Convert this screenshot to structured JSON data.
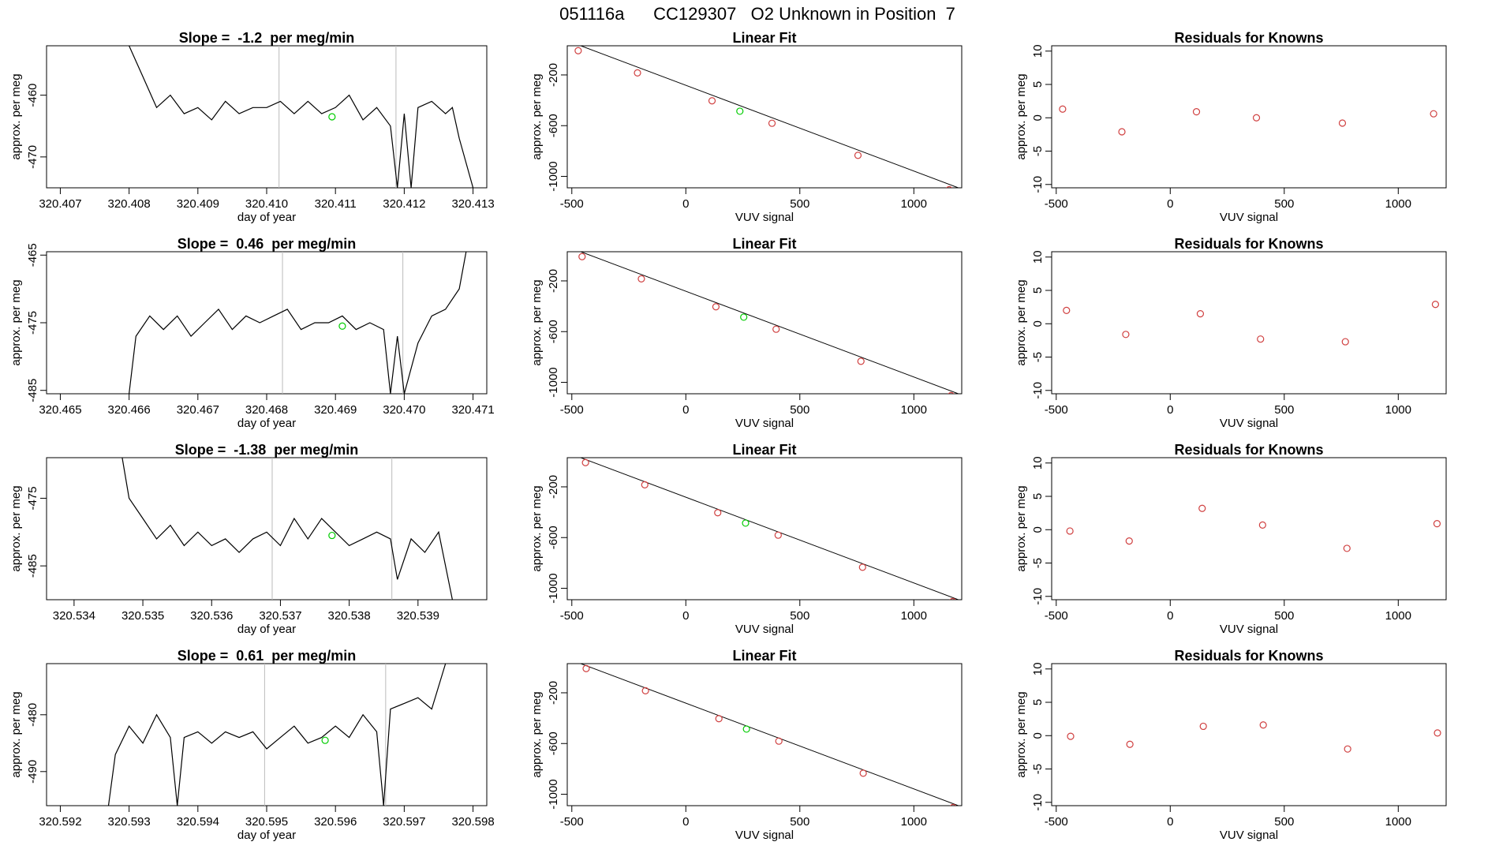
{
  "page_title": "051116a      CC129307   O2 Unknown in Position  7",
  "chart_data": [
    {
      "type": "line",
      "title": "Slope =  -1.2  per meg/min",
      "xlabel": "day of year",
      "ylabel": "approx. per meg",
      "xlim": [
        320.4068,
        320.4132
      ],
      "ylim": [
        -475,
        -452
      ],
      "xticks": [
        "320.407",
        "320.408",
        "320.409",
        "320.410",
        "320.411",
        "320.412",
        "320.413"
      ],
      "yticks": [
        "-460",
        "-470"
      ],
      "ytick_values": [
        -460,
        -470
      ],
      "vlines": [
        320.41018,
        320.41188
      ],
      "marker": {
        "x": 320.41095,
        "y": -463.5,
        "color": "#00cc00"
      },
      "line_color": "#000000",
      "series": [
        {
          "name": "trace",
          "x": [
            320.408,
            320.4082,
            320.4084,
            320.4086,
            320.4088,
            320.409,
            320.4092,
            320.4094,
            320.4096,
            320.4098,
            320.41,
            320.4102,
            320.4104,
            320.4106,
            320.4108,
            320.411,
            320.4112,
            320.4114,
            320.4116,
            320.4118,
            320.4119,
            320.412,
            320.4121,
            320.4122,
            320.4124,
            320.4126,
            320.4127,
            320.4128,
            320.413
          ],
          "y": [
            -452,
            -457,
            -462,
            -460,
            -463,
            -462,
            -464,
            -461,
            -463,
            -462,
            -462,
            -461,
            -463,
            -461,
            -463,
            -462,
            -460,
            -464,
            -462,
            -465,
            -475,
            -463,
            -475,
            -462,
            -461,
            -463,
            -462,
            -467,
            -475
          ]
        }
      ]
    },
    {
      "type": "scatter",
      "title": "Linear Fit",
      "xlabel": "VUV signal",
      "ylabel": "approx. per meg",
      "xlim": [
        -520,
        1210
      ],
      "ylim": [
        -1090,
        30
      ],
      "xticks": [
        "-500",
        "0",
        "500",
        "1000"
      ],
      "xtick_values": [
        -500,
        0,
        500,
        1000
      ],
      "yticks": [
        "-200",
        "-600",
        "-1000"
      ],
      "ytick_values": [
        -200,
        -600,
        -1000
      ],
      "fit_line": {
        "x": [
          -520,
          1210
        ],
        "y": [
          70,
          -1100
        ]
      },
      "points": {
        "x": [
          -472,
          -212,
          115,
          378,
          755,
          1155
        ],
        "y": [
          -9,
          -184,
          -404,
          -581,
          -834,
          -1105
        ],
        "color": "#d04040"
      },
      "unknown": {
        "x": [
          237
        ],
        "y": [
          -486
        ],
        "color": "#00cc00"
      }
    },
    {
      "type": "scatter",
      "title": "Residuals for Knowns",
      "xlabel": "VUV signal",
      "ylabel": "approx. per meg",
      "xlim": [
        -520,
        1210
      ],
      "ylim": [
        -10.5,
        10.8
      ],
      "xticks": [
        "-500",
        "0",
        "500",
        "1000"
      ],
      "xtick_values": [
        -500,
        0,
        500,
        1000
      ],
      "yticks": [
        "-10",
        "-5",
        "0",
        "5",
        "10"
      ],
      "ytick_values": [
        -10,
        -5,
        0,
        5,
        10
      ],
      "points": {
        "x": [
          -472,
          -212,
          115,
          378,
          755,
          1155
        ],
        "y": [
          1.3,
          -2.1,
          0.9,
          0.0,
          -0.8,
          0.6
        ],
        "color": "#d04040"
      }
    },
    {
      "type": "line",
      "title": "Slope =  0.46  per meg/min",
      "xlabel": "day of year",
      "ylabel": "approx. per meg",
      "xlim": [
        320.4648,
        320.4712
      ],
      "ylim": [
        -485.5,
        -464.5
      ],
      "xticks": [
        "320.465",
        "320.466",
        "320.467",
        "320.468",
        "320.469",
        "320.470",
        "320.471"
      ],
      "yticks": [
        "-465",
        "-475",
        "-485"
      ],
      "ytick_values": [
        -465,
        -475,
        -485
      ],
      "vlines": [
        320.46823,
        320.46998
      ],
      "marker": {
        "x": 320.4691,
        "y": -475.5,
        "color": "#00cc00"
      },
      "line_color": "#000000",
      "series": [
        {
          "name": "trace",
          "x": [
            320.466,
            320.4661,
            320.4663,
            320.4665,
            320.4667,
            320.4669,
            320.4671,
            320.4673,
            320.4675,
            320.4677,
            320.4679,
            320.4681,
            320.4683,
            320.4685,
            320.4687,
            320.4689,
            320.4691,
            320.4693,
            320.4695,
            320.4697,
            320.4698,
            320.4699,
            320.47,
            320.4702,
            320.4704,
            320.4706,
            320.4708,
            320.4709
          ],
          "y": [
            -485.5,
            -477,
            -474,
            -476,
            -474,
            -477,
            -475,
            -473,
            -476,
            -474,
            -475,
            -474,
            -473,
            -476,
            -475,
            -475,
            -474,
            -476,
            -475,
            -476,
            -485.5,
            -477,
            -485.5,
            -478,
            -474,
            -473,
            -470,
            -464.5
          ]
        }
      ]
    },
    {
      "type": "scatter",
      "title": "Linear Fit",
      "xlabel": "VUV signal",
      "ylabel": "approx. per meg",
      "xlim": [
        -520,
        1210
      ],
      "ylim": [
        -1090,
        30
      ],
      "xticks": [
        "-500",
        "0",
        "500",
        "1000"
      ],
      "xtick_values": [
        -500,
        0,
        500,
        1000
      ],
      "yticks": [
        "-200",
        "-600",
        "-1000"
      ],
      "ytick_values": [
        -200,
        -600,
        -1000
      ],
      "fit_line": {
        "x": [
          -520,
          1210
        ],
        "y": [
          70,
          -1100
        ]
      },
      "points": {
        "x": [
          -455,
          -195,
          132,
          396,
          768,
          1163
        ],
        "y": [
          -9,
          -184,
          -404,
          -581,
          -834,
          -1105
        ],
        "color": "#d04040"
      },
      "unknown": {
        "x": [
          254
        ],
        "y": [
          -486
        ],
        "color": "#00cc00"
      }
    },
    {
      "type": "scatter",
      "title": "Residuals for Knowns",
      "xlabel": "VUV signal",
      "ylabel": "approx. per meg",
      "xlim": [
        -520,
        1210
      ],
      "ylim": [
        -10.5,
        10.8
      ],
      "xticks": [
        "-500",
        "0",
        "500",
        "1000"
      ],
      "xtick_values": [
        -500,
        0,
        500,
        1000
      ],
      "yticks": [
        "-10",
        "-5",
        "0",
        "5",
        "10"
      ],
      "ytick_values": [
        -10,
        -5,
        0,
        5,
        10
      ],
      "points": {
        "x": [
          -455,
          -195,
          132,
          396,
          768,
          1163
        ],
        "y": [
          2.0,
          -1.6,
          1.5,
          -2.3,
          -2.7,
          2.9
        ],
        "color": "#d04040"
      }
    },
    {
      "type": "line",
      "title": "Slope =  -1.38  per meg/min",
      "xlabel": "day of year",
      "ylabel": "approx. per meg",
      "xlim": [
        320.5336,
        320.54
      ],
      "ylim": [
        -490,
        -469
      ],
      "xticks": [
        "320.534",
        "320.535",
        "320.536",
        "320.537",
        "320.538",
        "320.539"
      ],
      "yticks": [
        "-475",
        "-485"
      ],
      "ytick_values": [
        -475,
        -485
      ],
      "vlines": [
        320.53688,
        320.53862
      ],
      "marker": {
        "x": 320.53775,
        "y": -480.5,
        "color": "#00cc00"
      },
      "line_color": "#000000",
      "series": [
        {
          "name": "trace",
          "x": [
            320.5347,
            320.5348,
            320.535,
            320.5352,
            320.5354,
            320.5356,
            320.5358,
            320.536,
            320.5362,
            320.5364,
            320.5366,
            320.5368,
            320.537,
            320.5372,
            320.5374,
            320.5376,
            320.5378,
            320.538,
            320.5382,
            320.5384,
            320.5386,
            320.5387,
            320.5389,
            320.5391,
            320.5393,
            320.5395
          ],
          "y": [
            -469,
            -475,
            -478,
            -481,
            -479,
            -482,
            -480,
            -482,
            -481,
            -483,
            -481,
            -480,
            -482,
            -478,
            -481,
            -478,
            -480,
            -482,
            -481,
            -480,
            -481,
            -487,
            -481,
            -483,
            -480,
            -490
          ]
        }
      ]
    },
    {
      "type": "scatter",
      "title": "Linear Fit",
      "xlabel": "VUV signal",
      "ylabel": "approx. per meg",
      "xlim": [
        -520,
        1210
      ],
      "ylim": [
        -1090,
        30
      ],
      "xticks": [
        "-500",
        "0",
        "500",
        "1000"
      ],
      "xtick_values": [
        -500,
        0,
        500,
        1000
      ],
      "yticks": [
        "-200",
        "-600",
        "-1000"
      ],
      "ytick_values": [
        -200,
        -600,
        -1000
      ],
      "fit_line": {
        "x": [
          -520,
          1210
        ],
        "y": [
          70,
          -1100
        ]
      },
      "points": {
        "x": [
          -440,
          -180,
          140,
          405,
          775,
          1170
        ],
        "y": [
          -9,
          -184,
          -404,
          -581,
          -834,
          -1105
        ],
        "color": "#d04040"
      },
      "unknown": {
        "x": [
          262
        ],
        "y": [
          -486
        ],
        "color": "#00cc00"
      }
    },
    {
      "type": "scatter",
      "title": "Residuals for Knowns",
      "xlabel": "VUV signal",
      "ylabel": "approx. per meg",
      "xlim": [
        -520,
        1210
      ],
      "ylim": [
        -10.5,
        10.8
      ],
      "xticks": [
        "-500",
        "0",
        "500",
        "1000"
      ],
      "xtick_values": [
        -500,
        0,
        500,
        1000
      ],
      "yticks": [
        "-10",
        "-5",
        "0",
        "5",
        "10"
      ],
      "ytick_values": [
        -10,
        -5,
        0,
        5,
        10
      ],
      "points": {
        "x": [
          -440,
          -180,
          140,
          405,
          775,
          1170
        ],
        "y": [
          -0.2,
          -1.7,
          3.2,
          0.7,
          -2.8,
          0.9
        ],
        "color": "#d04040"
      }
    },
    {
      "type": "line",
      "title": "Slope =  0.61  per meg/min",
      "xlabel": "day of year",
      "ylabel": "approx. per meg",
      "xlim": [
        320.5918,
        320.5982
      ],
      "ylim": [
        -496,
        -471
      ],
      "xticks": [
        "320.592",
        "320.593",
        "320.594",
        "320.595",
        "320.596",
        "320.597",
        "320.598"
      ],
      "yticks": [
        "-480",
        "-490"
      ],
      "ytick_values": [
        -480,
        -490
      ],
      "vlines": [
        320.59497,
        320.59673
      ],
      "marker": {
        "x": 320.59585,
        "y": -484.5,
        "color": "#00cc00"
      },
      "line_color": "#000000",
      "series": [
        {
          "name": "trace",
          "x": [
            320.5927,
            320.5928,
            320.593,
            320.5932,
            320.5934,
            320.5936,
            320.5937,
            320.5938,
            320.594,
            320.5942,
            320.5944,
            320.5946,
            320.5948,
            320.595,
            320.5952,
            320.5954,
            320.5956,
            320.5958,
            320.596,
            320.5962,
            320.5964,
            320.5966,
            320.5967,
            320.5968,
            320.597,
            320.5972,
            320.5974,
            320.5976
          ],
          "y": [
            -496,
            -487,
            -482,
            -485,
            -480,
            -484,
            -496,
            -484,
            -483,
            -485,
            -483,
            -484,
            -483,
            -486,
            -484,
            -482,
            -485,
            -484,
            -482,
            -484,
            -480,
            -483,
            -496,
            -479,
            -478,
            -477,
            -479,
            -471
          ]
        }
      ]
    },
    {
      "type": "scatter",
      "title": "Linear Fit",
      "xlabel": "VUV signal",
      "ylabel": "approx. per meg",
      "xlim": [
        -520,
        1210
      ],
      "ylim": [
        -1090,
        30
      ],
      "xticks": [
        "-500",
        "0",
        "500",
        "1000"
      ],
      "xtick_values": [
        -500,
        0,
        500,
        1000
      ],
      "yticks": [
        "-200",
        "-600",
        "-1000"
      ],
      "ytick_values": [
        -200,
        -600,
        -1000
      ],
      "fit_line": {
        "x": [
          -520,
          1210
        ],
        "y": [
          70,
          -1100
        ]
      },
      "points": {
        "x": [
          -437,
          -177,
          145,
          408,
          778,
          1172
        ],
        "y": [
          -9,
          -184,
          -404,
          -581,
          -834,
          -1105
        ],
        "color": "#d04040"
      },
      "unknown": {
        "x": [
          266
        ],
        "y": [
          -486
        ],
        "color": "#00cc00"
      }
    },
    {
      "type": "scatter",
      "title": "Residuals for Knowns",
      "xlabel": "VUV signal",
      "ylabel": "approx. per meg",
      "xlim": [
        -520,
        1210
      ],
      "ylim": [
        -10.5,
        10.8
      ],
      "xticks": [
        "-500",
        "0",
        "500",
        "1000"
      ],
      "xtick_values": [
        -500,
        0,
        500,
        1000
      ],
      "yticks": [
        "-10",
        "-5",
        "0",
        "5",
        "10"
      ],
      "ytick_values": [
        -10,
        -5,
        0,
        5,
        10
      ],
      "points": {
        "x": [
          -437,
          -177,
          145,
          408,
          778,
          1172
        ],
        "y": [
          -0.1,
          -1.3,
          1.4,
          1.6,
          -2.0,
          0.4
        ],
        "color": "#d04040"
      }
    }
  ]
}
